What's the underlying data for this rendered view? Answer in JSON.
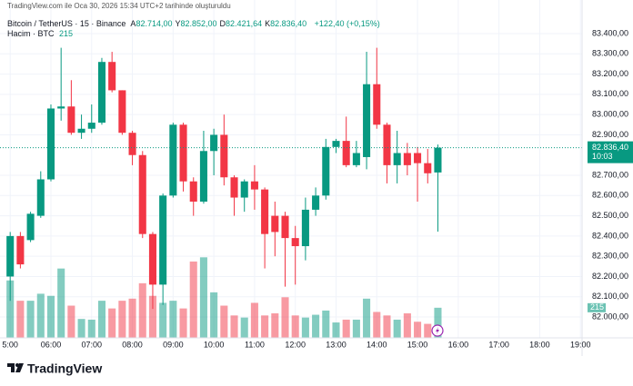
{
  "header": {
    "credit": "TradingView.com ile Oca 30, 2026 15:34 UTC+2 tarihinde oluşturuldu",
    "symbol": "Bitcoin / TetherUS · 15 · Binance",
    "ohlc": [
      {
        "prefix": "A",
        "text": "82.714,00"
      },
      {
        "prefix": "Y",
        "text": "82.852,00"
      },
      {
        "prefix": "D",
        "text": "82.421,64"
      },
      {
        "prefix": "K",
        "text": "82.836,40"
      }
    ],
    "change": "+122,40 (+0,15%)",
    "volume_title": "Hacim · BTC"
  },
  "footer": {
    "brand": "TradingView"
  },
  "chart_data": {
    "type": "candlestick",
    "up_color": "#089981",
    "down_color": "#f23645",
    "grid": true,
    "x": [
      5,
      5.25,
      5.5,
      5.75,
      6,
      6.25,
      6.5,
      6.75,
      7,
      7.25,
      7.5,
      7.75,
      8,
      8.25,
      8.5,
      8.75,
      9,
      9.25,
      9.5,
      9.75,
      10,
      10.25,
      10.5,
      10.75,
      11,
      11.25,
      11.5,
      11.75,
      12,
      12.25,
      12.5,
      12.75,
      13,
      13.25,
      13.5,
      13.75,
      14,
      14.25,
      14.5,
      14.75,
      15,
      15.25,
      15.5
    ],
    "open": [
      82200,
      82400,
      82380,
      82500,
      82680,
      83030,
      83040,
      82910,
      82930,
      82960,
      83260,
      83120,
      82910,
      82800,
      82410,
      82160,
      82600,
      82950,
      82670,
      82570,
      82820,
      82900,
      82690,
      82590,
      82670,
      82630,
      82500,
      82500,
      82390,
      82350,
      82530,
      82600,
      82840,
      82870,
      82750,
      82790,
      83150,
      82950,
      82750,
      82810,
      82810,
      82760,
      82714
    ],
    "high": [
      82420,
      82420,
      82520,
      82720,
      83050,
      83330,
      83170,
      83000,
      83050,
      83280,
      83310,
      83120,
      82920,
      82820,
      82420,
      82610,
      82960,
      82960,
      82690,
      82920,
      82930,
      83000,
      82700,
      82680,
      82750,
      82640,
      82570,
      82520,
      82450,
      82590,
      82640,
      82880,
      82880,
      82990,
      82870,
      83310,
      83330,
      82960,
      82920,
      82860,
      82840,
      82830,
      82852
    ],
    "low": [
      82080,
      82240,
      82370,
      82490,
      82670,
      82970,
      82900,
      82880,
      82910,
      82950,
      83110,
      82900,
      82750,
      82390,
      82040,
      82060,
      82590,
      82620,
      82500,
      82560,
      82700,
      82650,
      82500,
      82520,
      82530,
      82240,
      82300,
      82150,
      82160,
      82280,
      82500,
      82580,
      82810,
      82740,
      82740,
      82730,
      82930,
      82660,
      82660,
      82700,
      82570,
      82660,
      82421.64
    ],
    "close": [
      82400,
      82260,
      82510,
      82680,
      83030,
      83040,
      82910,
      82930,
      82960,
      83260,
      83120,
      82910,
      82800,
      82410,
      82160,
      82600,
      82950,
      82670,
      82570,
      82820,
      82900,
      82690,
      82590,
      82670,
      82630,
      82410,
      82420,
      82390,
      82350,
      82530,
      82600,
      82840,
      82870,
      82750,
      82810,
      83150,
      82950,
      82750,
      82810,
      82750,
      82760,
      82710,
      82836.4
    ],
    "volume": [
      410,
      265,
      265,
      315,
      300,
      495,
      230,
      135,
      130,
      265,
      210,
      265,
      280,
      390,
      300,
      250,
      265,
      210,
      545,
      575,
      325,
      230,
      160,
      145,
      250,
      160,
      175,
      290,
      160,
      145,
      165,
      195,
      110,
      130,
      130,
      280,
      185,
      160,
      130,
      175,
      115,
      100,
      215
    ],
    "volume_ylim": [
      0,
      2412
    ],
    "xlim": [
      4.75,
      19.04
    ],
    "xticks": [
      {
        "value": 5,
        "label": "5:00"
      },
      {
        "value": 6,
        "label": "06:00"
      },
      {
        "value": 7,
        "label": "07:00"
      },
      {
        "value": 8,
        "label": "08:00"
      },
      {
        "value": 9,
        "label": "09:00"
      },
      {
        "value": 10,
        "label": "10:00"
      },
      {
        "value": 11,
        "label": "11:00"
      },
      {
        "value": 12,
        "label": "12:00"
      },
      {
        "value": 13,
        "label": "13:00"
      },
      {
        "value": 14,
        "label": "14:00"
      },
      {
        "value": 15,
        "label": "15:00"
      },
      {
        "value": 16,
        "label": "16:00"
      },
      {
        "value": 17,
        "label": "17:00"
      },
      {
        "value": 18,
        "label": "18:00"
      },
      {
        "value": 19,
        "label": "19:00"
      }
    ],
    "ylim": [
      81897,
      83566
    ],
    "yticks": [
      {
        "value": 83400,
        "label": "83.400,00"
      },
      {
        "value": 83300,
        "label": "83.300,00"
      },
      {
        "value": 83200,
        "label": "83.200,00"
      },
      {
        "value": 83100,
        "label": "83.100,00"
      },
      {
        "value": 83000,
        "label": "83.000,00"
      },
      {
        "value": 82900,
        "label": "82.900,00"
      },
      {
        "value": 82700,
        "label": "82.700,00"
      },
      {
        "value": 82600,
        "label": "82.600,00"
      },
      {
        "value": 82500,
        "label": "82.500,00"
      },
      {
        "value": 82400,
        "label": "82.400,00"
      },
      {
        "value": 82300,
        "label": "82.300,00"
      },
      {
        "value": 82200,
        "label": "82.200,00"
      },
      {
        "value": 82100,
        "label": "82.100,00"
      },
      {
        "value": 82000,
        "label": "82.000,00"
      }
    ],
    "last_price": {
      "value": 82836.4,
      "label": "82.836,40"
    },
    "countdown": "10:03"
  }
}
